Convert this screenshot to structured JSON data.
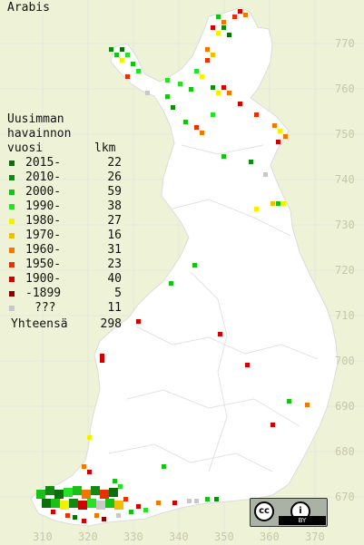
{
  "title": "Arabis",
  "legend": {
    "heading_line1": "Uusimman",
    "heading_line2": "havainnon",
    "heading_line3_left": "vuosi",
    "heading_line3_right": "lkm",
    "items": [
      {
        "label": "2015-",
        "count": "22",
        "color": "#0a6e0a"
      },
      {
        "label": "2010-",
        "count": "26",
        "color": "#128a12"
      },
      {
        "label": "2000-",
        "count": "59",
        "color": "#18c018"
      },
      {
        "label": "1990-",
        "count": "38",
        "color": "#28e028"
      },
      {
        "label": "1980-",
        "count": "27",
        "color": "#f2f200"
      },
      {
        "label": "1970-",
        "count": "16",
        "color": "#f0c000"
      },
      {
        "label": "1960-",
        "count": "31",
        "color": "#f07800"
      },
      {
        "label": "1950-",
        "count": "23",
        "color": "#e83000"
      },
      {
        "label": "1900-",
        "count": "40",
        "color": "#d00000"
      },
      {
        "label": "-1899",
        "count": "5",
        "color": "#8a0000"
      },
      {
        "label": "???",
        "count": "11",
        "color": "#c8c8c8"
      }
    ],
    "total_label": "Yhteensä",
    "total_count": "298"
  },
  "y_axis": [
    "770",
    "760",
    "750",
    "740",
    "730",
    "720",
    "710",
    "700",
    "690",
    "680",
    "670"
  ],
  "x_axis": [
    "310",
    "320",
    "330",
    "340",
    "350",
    "360",
    "370"
  ],
  "license": {
    "cc": "cc",
    "info": "i",
    "by": "BY"
  }
}
